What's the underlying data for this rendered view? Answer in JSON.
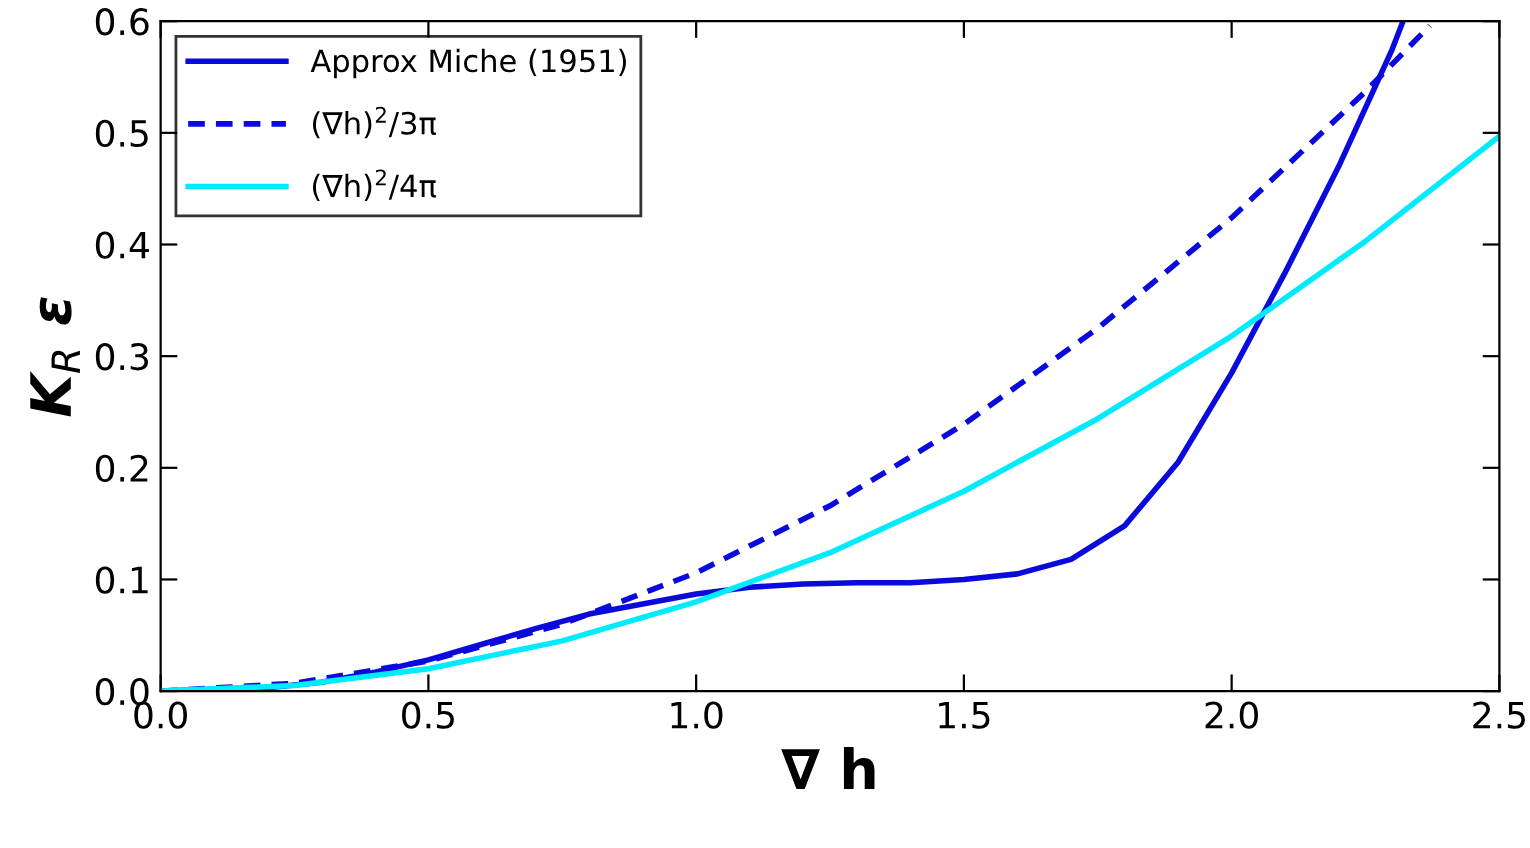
{
  "chart_data": {
    "type": "line",
    "xlabel": "∇ h",
    "ylabel": "K$_{R}$ ε",
    "xlim": [
      0,
      2.5
    ],
    "ylim": [
      0,
      0.6
    ],
    "xticks": [
      {
        "value": 0,
        "label": "0.0"
      },
      0.5,
      {
        "value": 1,
        "label": "1.0"
      },
      1.5,
      {
        "value": 2,
        "label": "2.0"
      },
      2.5
    ],
    "yticks": [
      {
        "value": 0,
        "label": "0.0"
      },
      0.1,
      0.2,
      0.3,
      0.4,
      0.5,
      0.6
    ],
    "grid": false,
    "legend": "top left",
    "series": [
      {
        "name": "Approx Miche (1951)",
        "color": "#0a0adc",
        "line_style": "solid",
        "x": [
          0,
          0.2,
          0.3,
          0.4,
          0.5,
          0.6,
          0.7,
          0.8,
          0.9,
          1.0,
          1.1,
          1.2,
          1.3,
          1.4,
          1.5,
          1.6,
          1.7,
          1.8,
          1.9,
          2.0,
          2.1,
          2.2,
          2.3,
          2.32
        ],
        "values": [
          0,
          0.003,
          0.008,
          0.017,
          0.028,
          0.042,
          0.056,
          0.069,
          0.078,
          0.087,
          0.093,
          0.096,
          0.097,
          0.097,
          0.1,
          0.105,
          0.118,
          0.148,
          0.205,
          0.285,
          0.375,
          0.47,
          0.575,
          0.6
        ]
      },
      {
        "name": "(∇h)$^{2}$/3π",
        "color": "#0a0adc",
        "line_style": "dashed",
        "x": [
          0,
          0.25,
          0.5,
          0.75,
          1.0,
          1.25,
          1.5,
          1.75,
          2.0,
          2.25,
          2.37
        ],
        "values": [
          0,
          0.007,
          0.027,
          0.06,
          0.106,
          0.166,
          0.239,
          0.325,
          0.424,
          0.537,
          0.596
        ]
      },
      {
        "name": "(∇h)$^{2}$/4π",
        "color": "#00ebff",
        "line_style": "solid",
        "x": [
          0,
          0.25,
          0.5,
          0.75,
          1.0,
          1.25,
          1.5,
          1.75,
          2.0,
          2.25,
          2.5
        ],
        "values": [
          0,
          0.005,
          0.02,
          0.045,
          0.08,
          0.124,
          0.179,
          0.244,
          0.318,
          0.403,
          0.497
        ]
      }
    ]
  }
}
